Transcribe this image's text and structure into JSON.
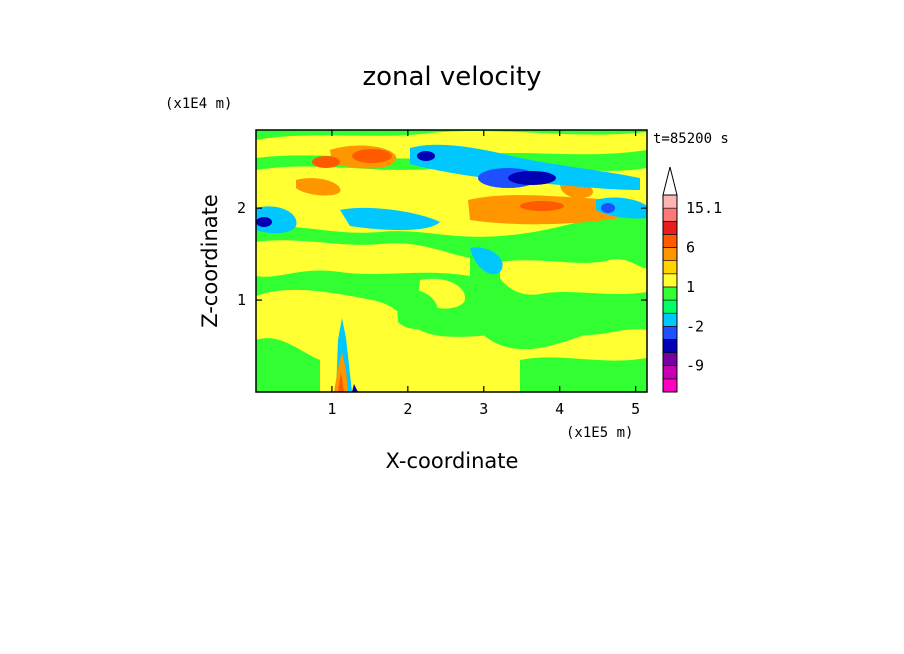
{
  "chart_data": {
    "type": "heatmap",
    "title": "zonal velocity",
    "xlabel": "X-coordinate",
    "ylabel": "Z-coordinate",
    "x_unit": "(x1E5 m)",
    "y_unit": "(x1E4 m)",
    "time_label": "t=85200 s",
    "xlim": [
      0,
      5.15
    ],
    "ylim": [
      0,
      2.85
    ],
    "x_ticks": [
      1,
      2,
      3,
      4,
      5
    ],
    "y_ticks": [
      1,
      2
    ],
    "x_tick_labels": [
      "1",
      "2",
      "3",
      "4",
      "5"
    ],
    "y_tick_labels": [
      "1",
      "2"
    ],
    "colorbar": {
      "levels": [
        -15,
        -12,
        -9,
        -6,
        -4,
        -2,
        -1,
        0,
        1,
        2,
        4,
        6,
        9,
        12,
        15.1
      ],
      "labels": [
        "15.1",
        "6",
        "1",
        "-2",
        "-9"
      ],
      "label_values": [
        15.1,
        6,
        1,
        -2,
        -9
      ],
      "colors": [
        "#ff00c0",
        "#c800b4",
        "#7800a0",
        "#0000b4",
        "#1e50ff",
        "#00c8ff",
        "#00ff64",
        "#32ff32",
        "#ffff32",
        "#ffd200",
        "#ff9600",
        "#ff5a00",
        "#e61e1e",
        "#ff7878",
        "#ffb4b4"
      ],
      "overflow_color": "#ffffff"
    },
    "grid": false
  }
}
